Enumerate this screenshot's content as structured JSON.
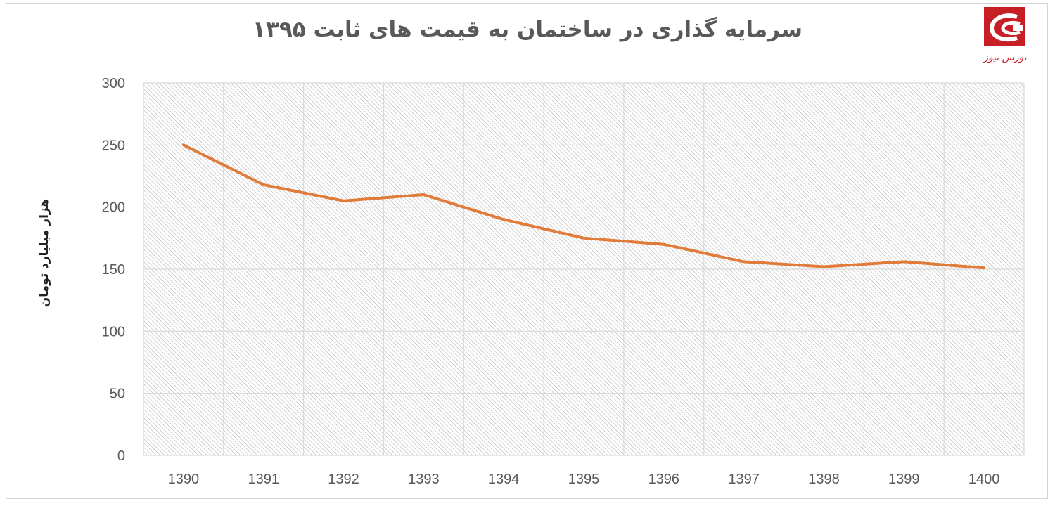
{
  "chart_data": {
    "type": "line",
    "title": "سرمایه گذاری در ساختمان به قیمت های ثابت ۱۳۹۵",
    "xlabel": "",
    "ylabel": "هزار میلیارد تومان",
    "categories": [
      "1390",
      "1391",
      "1392",
      "1393",
      "1394",
      "1395",
      "1396",
      "1397",
      "1398",
      "1399",
      "1400"
    ],
    "series": [
      {
        "values": [
          250,
          218,
          205,
          210,
          190,
          175,
          170,
          156,
          152,
          156,
          151
        ],
        "color": "#e07b39"
      }
    ],
    "ylim": [
      0,
      300
    ],
    "yticks": [
      "0",
      "50",
      "100",
      "150",
      "200",
      "250",
      "300"
    ],
    "grid": true,
    "legend": "none"
  },
  "logo": {
    "text": "بورس نیوز",
    "color": "#c62026"
  }
}
